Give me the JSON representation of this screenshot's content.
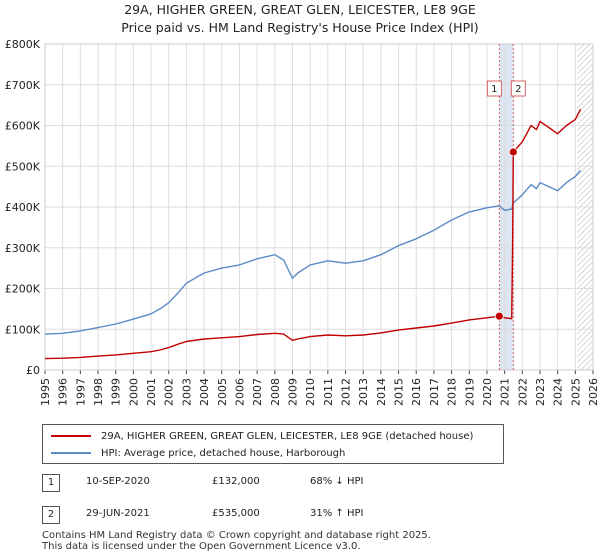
{
  "title_line1": "29A, HIGHER GREEN, GREAT GLEN, LEICESTER, LE8 9GE",
  "title_line2": "Price paid vs. HM Land Registry's House Price Index (HPI)",
  "colors": {
    "property": "#c00000",
    "hpi": "#5b8ac6",
    "band": "#dde4f2",
    "grid": "#dddddd"
  },
  "chart_data": {
    "type": "line",
    "title": "Price paid vs. HM Land Registry's House Price Index (HPI)",
    "xlabel": "",
    "ylabel": "",
    "xlim": [
      1995,
      2026
    ],
    "ylim": [
      0,
      800000
    ],
    "x_ticks": [
      "1995",
      "1996",
      "1997",
      "1998",
      "1999",
      "2000",
      "2001",
      "2002",
      "2003",
      "2004",
      "2005",
      "2006",
      "2007",
      "2008",
      "2009",
      "2010",
      "2011",
      "2012",
      "2013",
      "2014",
      "2015",
      "2016",
      "2017",
      "2018",
      "2019",
      "2020",
      "2021",
      "2022",
      "2023",
      "2024",
      "2025",
      "2026"
    ],
    "y_ticks": [
      {
        "value": 0,
        "label": "£0"
      },
      {
        "value": 100000,
        "label": "£100K"
      },
      {
        "value": 200000,
        "label": "£200K"
      },
      {
        "value": 300000,
        "label": "£300K"
      },
      {
        "value": 400000,
        "label": "£400K"
      },
      {
        "value": 500000,
        "label": "£500K"
      },
      {
        "value": 600000,
        "label": "£600K"
      },
      {
        "value": 700000,
        "label": "£700K"
      },
      {
        "value": 800000,
        "label": "£800K"
      }
    ],
    "grid": true,
    "series": [
      {
        "name": "29A, HIGHER GREEN, GREAT GLEN, LEICESTER, LE8 9GE (detached house)",
        "color": "#c00000",
        "x": [
          1995,
          1996,
          1997,
          1998,
          1999,
          2000,
          2001,
          2001.5,
          2002,
          2002.5,
          2003,
          2004,
          2005,
          2006,
          2007,
          2008,
          2008.5,
          2009,
          2009.3,
          2010,
          2011,
          2012,
          2013,
          2014,
          2015,
          2016,
          2017,
          2018,
          2019,
          2020,
          2020.7,
          2021.0,
          2021.4,
          2021.45,
          2021.49,
          2022,
          2022.5,
          2022.8,
          2023,
          2023.5,
          2024,
          2024.5,
          2025,
          2025.3
        ],
        "y": [
          28000,
          29000,
          31000,
          34000,
          37000,
          41000,
          45000,
          49000,
          55000,
          63000,
          70000,
          76000,
          79000,
          82000,
          87000,
          90000,
          88000,
          73000,
          76000,
          82000,
          86000,
          84000,
          86000,
          91000,
          98000,
          103000,
          108000,
          115000,
          123000,
          128000,
          132000,
          128000,
          126000,
          300000,
          535000,
          560000,
          600000,
          590000,
          610000,
          595000,
          580000,
          600000,
          615000,
          640000
        ]
      },
      {
        "name": "HPI: Average price, detached house, Harborough",
        "color": "#5b8ac6",
        "x": [
          1995,
          1996,
          1997,
          1998,
          1999,
          2000,
          2001,
          2001.5,
          2002,
          2002.5,
          2003,
          2004,
          2005,
          2006,
          2007,
          2008,
          2008.5,
          2009,
          2009.3,
          2010,
          2011,
          2012,
          2013,
          2014,
          2015,
          2016,
          2017,
          2018,
          2019,
          2020,
          2020.7,
          2021.0,
          2021.4,
          2021.49,
          2022,
          2022.5,
          2022.8,
          2023,
          2023.5,
          2024,
          2024.5,
          2025,
          2025.3
        ],
        "y": [
          88000,
          90000,
          96000,
          104000,
          113000,
          125000,
          138000,
          150000,
          165000,
          188000,
          213000,
          238000,
          250000,
          258000,
          273000,
          283000,
          270000,
          225000,
          238000,
          258000,
          268000,
          262000,
          268000,
          283000,
          305000,
          322000,
          343000,
          368000,
          388000,
          398000,
          403000,
          392000,
          395000,
          410000,
          430000,
          455000,
          445000,
          460000,
          450000,
          440000,
          460000,
          475000,
          490000
        ]
      }
    ],
    "transactions": [
      {
        "id": "1",
        "x": 2020.7,
        "y": 132000,
        "date": "10-SEP-2020",
        "price": "£132,000",
        "hpi": "68% ↓ HPI"
      },
      {
        "id": "2",
        "x": 2021.49,
        "y": 535000,
        "date": "29-JUN-2021",
        "price": "£535,000",
        "hpi": "31% ↑ HPI"
      }
    ],
    "shaded_range": [
      2020.7,
      2021.49
    ],
    "forecast_from": 2025.1
  },
  "legend": {
    "property_label": "29A, HIGHER GREEN, GREAT GLEN, LEICESTER, LE8 9GE (detached house)",
    "hpi_label": "HPI: Average price, detached house, Harborough"
  },
  "footer_line1": "Contains HM Land Registry data © Crown copyright and database right 2025.",
  "footer_line2": "This data is licensed under the Open Government Licence v3.0."
}
